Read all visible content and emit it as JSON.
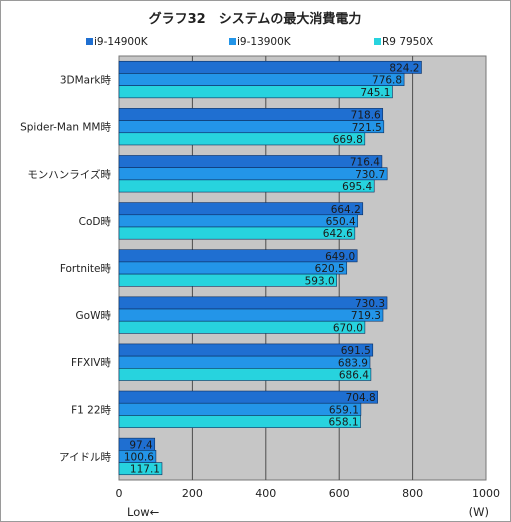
{
  "chart_data": {
    "type": "bar",
    "orientation": "horizontal",
    "title": "グラフ32　システムの最大消費電力",
    "categories": [
      "3DMark時",
      "Spider-Man MM時",
      "モンハンライズ時",
      "CoD時",
      "Fortnite時",
      "GoW時",
      "FFXIV時",
      "F1 22時",
      "アイドル時"
    ],
    "series": [
      {
        "name": "i9-14900K",
        "color": "#1f6fd1",
        "values": [
          824.2,
          718.6,
          716.4,
          664.2,
          649.0,
          730.3,
          691.5,
          704.8,
          97.4
        ]
      },
      {
        "name": "i9-13900K",
        "color": "#2395e8",
        "values": [
          776.8,
          721.5,
          730.7,
          650.4,
          620.5,
          719.3,
          683.9,
          659.1,
          100.6
        ]
      },
      {
        "name": "R9 7950X",
        "color": "#27d3de",
        "values": [
          745.1,
          669.8,
          695.4,
          642.6,
          593.0,
          670.0,
          686.4,
          658.1,
          117.1
        ]
      }
    ],
    "value_labels": [
      [
        "824.2",
        "718.6",
        "716.4",
        "664.2",
        "649.0",
        "730.3",
        "691.5",
        "704.8",
        "97.4"
      ],
      [
        "776.8",
        "721.5",
        "730.7",
        "650.4",
        "620.5",
        "719.3",
        "683.9",
        "659.1",
        "100.6"
      ],
      [
        "745.1",
        "669.8",
        "695.4",
        "642.6",
        "593.0",
        "670.0",
        "686.4",
        "658.1",
        "117.1"
      ]
    ],
    "xlim": [
      0,
      1000
    ],
    "xticks": [
      0,
      200,
      400,
      600,
      800,
      1000
    ],
    "xtick_labels": [
      "0",
      "200",
      "400",
      "600",
      "800",
      "1000"
    ],
    "xlabel_left": "Low←",
    "xlabel_right": "(W)",
    "legend_position": "top",
    "grid": true,
    "plot_background": "#c6c6c6"
  }
}
